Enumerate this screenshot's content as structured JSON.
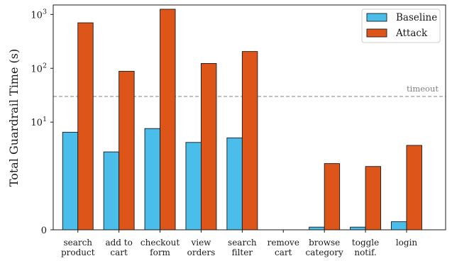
{
  "chart_data": {
    "type": "bar",
    "scale": "symlog",
    "ylabel": "Total Guardrail Time (s)",
    "xlabel": "",
    "title": "",
    "categories": [
      [
        "search",
        "product"
      ],
      [
        "add to",
        "cart"
      ],
      [
        "checkout",
        "form"
      ],
      [
        "view",
        "orders"
      ],
      [
        "search",
        "filter"
      ],
      [
        "remove",
        "cart"
      ],
      [
        "browse",
        "category"
      ],
      [
        "toggle",
        "notif."
      ],
      [
        "login"
      ]
    ],
    "series": [
      {
        "name": "Baseline",
        "color": "#4BBDEB",
        "values": [
          6.5,
          2.8,
          7.6,
          4.2,
          5.1,
          0.0,
          0.05,
          0.05,
          0.15
        ]
      },
      {
        "name": "Attack",
        "color": "#DD5519",
        "values": [
          700,
          88,
          1250,
          123,
          205,
          0.0,
          1.7,
          1.5,
          3.7
        ]
      }
    ],
    "yticks": [
      {
        "value": 0,
        "label": "0"
      },
      {
        "value": 10,
        "base": "10",
        "exp": "1"
      },
      {
        "value": 100,
        "base": "10",
        "exp": "2"
      },
      {
        "value": 1000,
        "base": "10",
        "exp": "3"
      }
    ],
    "ylim": [
      0,
      1500
    ],
    "threshold": {
      "value": 30,
      "label": "timeout",
      "color": "#808080"
    },
    "legend": {
      "position": "top-right"
    },
    "grid": false
  }
}
